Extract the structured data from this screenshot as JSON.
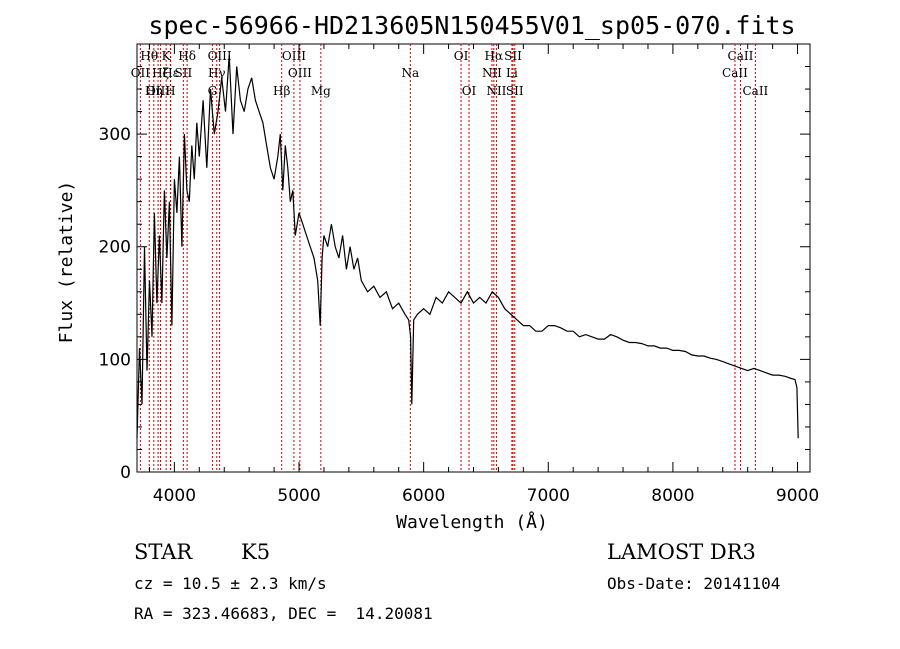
{
  "chart_data": {
    "type": "line",
    "title": "spec-56966-HD213605N150455V01_sp05-070.fits",
    "xlabel": "Wavelength (Å)",
    "ylabel": "Flux (relative)",
    "xlim": [
      3700,
      9100
    ],
    "ylim": [
      0,
      380
    ],
    "x_ticks": [
      4000,
      5000,
      6000,
      7000,
      8000,
      9000
    ],
    "y_ticks": [
      0,
      100,
      200,
      300
    ],
    "x_tick_labels": [
      "4000",
      "5000",
      "6000",
      "7000",
      "8000",
      "9000"
    ],
    "y_tick_labels": [
      "0",
      "100",
      "200",
      "300"
    ],
    "grid": false,
    "series": [
      {
        "x": [
          3700,
          3720,
          3740,
          3760,
          3780,
          3800,
          3820,
          3840,
          3860,
          3880,
          3900,
          3920,
          3940,
          3960,
          3980,
          4000,
          4020,
          4040,
          4060,
          4080,
          4100,
          4120,
          4140,
          4160,
          4180,
          4200,
          4230,
          4260,
          4290,
          4320,
          4350,
          4380,
          4410,
          4440,
          4470,
          4500,
          4530,
          4560,
          4590,
          4620,
          4650,
          4680,
          4710,
          4740,
          4770,
          4800,
          4830,
          4850,
          4870,
          4890,
          4910,
          4930,
          4950,
          4970,
          5000,
          5030,
          5060,
          5090,
          5120,
          5150,
          5170,
          5185,
          5200,
          5230,
          5260,
          5290,
          5320,
          5350,
          5380,
          5410,
          5440,
          5470,
          5500,
          5550,
          5600,
          5650,
          5700,
          5750,
          5800,
          5850,
          5880,
          5895,
          5905,
          5920,
          5950,
          6000,
          6050,
          6100,
          6150,
          6200,
          6250,
          6300,
          6350,
          6400,
          6450,
          6500,
          6550,
          6600,
          6650,
          6700,
          6750,
          6800,
          6850,
          6900,
          6950,
          7000,
          7050,
          7100,
          7150,
          7200,
          7250,
          7300,
          7350,
          7400,
          7450,
          7500,
          7550,
          7600,
          7650,
          7700,
          7750,
          7800,
          7850,
          7900,
          7950,
          8000,
          8050,
          8100,
          8150,
          8200,
          8250,
          8300,
          8350,
          8400,
          8450,
          8500,
          8550,
          8600,
          8650,
          8700,
          8750,
          8800,
          8850,
          8900,
          8950,
          8980,
          8995,
          9005
        ],
        "y": [
          30,
          110,
          60,
          200,
          90,
          170,
          120,
          230,
          150,
          210,
          150,
          250,
          190,
          240,
          130,
          260,
          230,
          280,
          200,
          300,
          250,
          240,
          290,
          260,
          310,
          280,
          330,
          270,
          340,
          300,
          320,
          350,
          320,
          370,
          300,
          360,
          330,
          320,
          340,
          350,
          330,
          320,
          310,
          290,
          270,
          260,
          280,
          300,
          250,
          290,
          270,
          240,
          250,
          210,
          230,
          220,
          210,
          200,
          190,
          170,
          130,
          190,
          210,
          200,
          220,
          200,
          190,
          210,
          180,
          200,
          180,
          190,
          170,
          160,
          165,
          155,
          160,
          145,
          150,
          140,
          135,
          120,
          60,
          135,
          140,
          145,
          140,
          155,
          150,
          160,
          155,
          150,
          160,
          150,
          155,
          150,
          160,
          155,
          145,
          140,
          135,
          130,
          130,
          125,
          125,
          130,
          130,
          128,
          125,
          125,
          120,
          122,
          120,
          118,
          118,
          122,
          120,
          117,
          115,
          115,
          114,
          112,
          112,
          110,
          110,
          108,
          108,
          107,
          104,
          103,
          103,
          101,
          100,
          98,
          96,
          94,
          92,
          90,
          92,
          90,
          88,
          86,
          86,
          85,
          83,
          82,
          75,
          30
        ]
      }
    ],
    "spectral_lines": [
      {
        "label": "Hθ",
        "x": 3798,
        "row": 0
      },
      {
        "label": "OII",
        "x": 3727,
        "row": 1
      },
      {
        "label": "OIII",
        "x": 3869,
        "row": 2
      },
      {
        "label": "Hη",
        "x": 3835,
        "row": 2
      },
      {
        "label": "Hζ",
        "x": 3889,
        "row": 1
      },
      {
        "label": "K",
        "x": 3934,
        "row": 0
      },
      {
        "label": "Hε",
        "x": 3970,
        "row": 1
      },
      {
        "label": "H",
        "x": 3968,
        "row": 2
      },
      {
        "label": "SII",
        "x": 4072,
        "row": 1
      },
      {
        "label": "Hδ",
        "x": 4102,
        "row": 0
      },
      {
        "label": "OIII",
        "x": 4363,
        "row": 0
      },
      {
        "label": "Hγ",
        "x": 4340,
        "row": 1
      },
      {
        "label": "G",
        "x": 4305,
        "row": 2
      },
      {
        "label": "Hβ",
        "x": 4861,
        "row": 2
      },
      {
        "label": "OIII",
        "x": 4959,
        "row": 0
      },
      {
        "label": "OIII",
        "x": 5007,
        "row": 1
      },
      {
        "label": "Mg",
        "x": 5175,
        "row": 2
      },
      {
        "label": "Na",
        "x": 5893,
        "row": 1
      },
      {
        "label": "OI",
        "x": 6300,
        "row": 0
      },
      {
        "label": "OI",
        "x": 6364,
        "row": 2
      },
      {
        "label": "Hα",
        "x": 6563,
        "row": 0
      },
      {
        "label": "NII",
        "x": 6548,
        "row": 1
      },
      {
        "label": "NII",
        "x": 6584,
        "row": 2
      },
      {
        "label": "SII",
        "x": 6717,
        "row": 0
      },
      {
        "label": "Li",
        "x": 6708,
        "row": 1
      },
      {
        "label": "SII",
        "x": 6731,
        "row": 2
      },
      {
        "label": "CaII",
        "x": 8542,
        "row": 0
      },
      {
        "label": "CaII",
        "x": 8498,
        "row": 1
      },
      {
        "label": "CaII",
        "x": 8662,
        "row": 2
      }
    ],
    "line_color": "#000000",
    "marker_color": "#cc0000"
  },
  "info": {
    "class_label": "STAR",
    "subclass": "K5",
    "survey": "LAMOST DR3",
    "cz_text": "cz = 10.5 ± 2.3 km/s",
    "obs_date_text": "Obs-Date: 20141104",
    "radec_text": "RA = 323.46683, DEC =  14.20081"
  }
}
